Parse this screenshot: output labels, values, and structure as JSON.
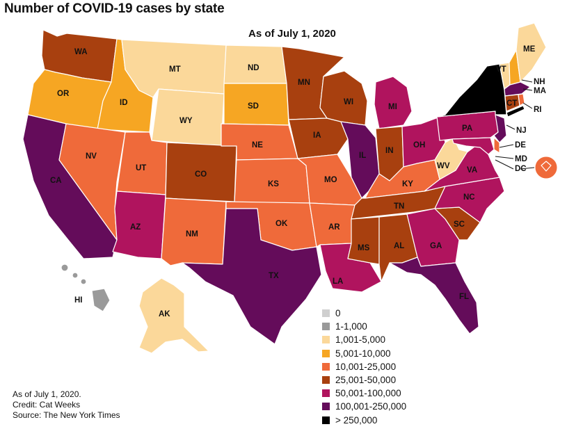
{
  "title": "Number of COVID-19 cases by state",
  "subtitle": "As of July 1, 2020",
  "colors": {
    "bin0": "#cfcfcf",
    "bin1": "#9a9a9a",
    "bin2": "#fbd89a",
    "bin3": "#f6a623",
    "bin4": "#ef6a3a",
    "bin5": "#a8400f",
    "bin6": "#b0145e",
    "bin7": "#640c5a",
    "bin8": "#000000"
  },
  "legend": [
    {
      "label": "0",
      "color": "#cfcfcf"
    },
    {
      "label": "1-1,000",
      "color": "#9a9a9a"
    },
    {
      "label": "1,001-5,000",
      "color": "#fbd89a"
    },
    {
      "label": "5,001-10,000",
      "color": "#f6a623"
    },
    {
      "label": "10,001-25,000",
      "color": "#ef6a3a"
    },
    {
      "label": "25,001-50,000",
      "color": "#a8400f"
    },
    {
      "label": "50,001-100,000",
      "color": "#b0145e"
    },
    {
      "label": "100,001-250,000",
      "color": "#640c5a"
    },
    {
      "label": "> 250,000",
      "color": "#000000"
    }
  ],
  "states": {
    "WA": "25,001-50,000",
    "OR": "5,001-10,000",
    "CA": "100,001-250,000",
    "ID": "5,001-10,000",
    "NV": "10,001-25,000",
    "MT": "1,001-5,000",
    "WY": "1,001-5,000",
    "UT": "10,001-25,000",
    "AZ": "50,001-100,000",
    "CO": "25,001-50,000",
    "NM": "10,001-25,000",
    "ND": "1,001-5,000",
    "SD": "5,001-10,000",
    "NE": "10,001-25,000",
    "KS": "10,001-25,000",
    "OK": "10,001-25,000",
    "TX": "100,001-250,000",
    "MN": "25,001-50,000",
    "IA": "25,001-50,000",
    "MO": "10,001-25,000",
    "AR": "10,001-25,000",
    "LA": "50,001-100,000",
    "WI": "25,001-50,000",
    "IL": "100,001-250,000",
    "MI": "50,001-100,000",
    "IN": "25,001-50,000",
    "OH": "50,001-100,000",
    "KY": "10,001-25,000",
    "TN": "25,001-50,000",
    "MS": "25,001-50,000",
    "AL": "25,001-50,000",
    "GA": "50,001-100,000",
    "FL": "100,001-250,000",
    "SC": "25,001-50,000",
    "NC": "50,001-100,000",
    "VA": "50,001-100,000",
    "WV": "1,001-5,000",
    "PA": "50,001-100,000",
    "NY": "> 250,000",
    "NJ": "100,001-250,000",
    "DE": "10,001-25,000",
    "MD": "50,001-100,000",
    "DC": "10,001-25,000",
    "CT": "25,001-50,000",
    "RI": "10,001-25,000",
    "MA": "100,001-250,000",
    "VT": "1,001-5,000",
    "NH": "5,001-10,000",
    "ME": "1,001-5,000",
    "AK": "1,001-5,000",
    "HI": "1-1,000"
  },
  "labels": {
    "WA": "WA",
    "OR": "OR",
    "CA": "CA",
    "ID": "ID",
    "NV": "NV",
    "MT": "MT",
    "WY": "WY",
    "UT": "UT",
    "AZ": "AZ",
    "CO": "CO",
    "NM": "NM",
    "ND": "ND",
    "SD": "SD",
    "NE": "NE",
    "KS": "KS",
    "OK": "OK",
    "TX": "TX",
    "MN": "MN",
    "IA": "IA",
    "MO": "MO",
    "AR": "AR",
    "LA": "LA",
    "WI": "WI",
    "IL": "IL",
    "MI": "MI",
    "IN": "IN",
    "OH": "OH",
    "KY": "KY",
    "TN": "TN",
    "MS": "MS",
    "AL": "AL",
    "GA": "GA",
    "FL": "FL",
    "SC": "SC",
    "NC": "NC",
    "VA": "VA",
    "WV": "WV",
    "PA": "PA",
    "NJ": "NJ",
    "DE": "DE",
    "MD": "MD",
    "DC": "DC",
    "CT": "CT",
    "RI": "RI",
    "MA": "MA",
    "VT": "VT",
    "NH": "NH",
    "ME": "ME",
    "AK": "AK",
    "HI": "HI"
  },
  "notes": {
    "line1": "As of July 1, 2020.",
    "line2": "Credit: Cat Weeks",
    "line3": "Source: The New York Times"
  }
}
